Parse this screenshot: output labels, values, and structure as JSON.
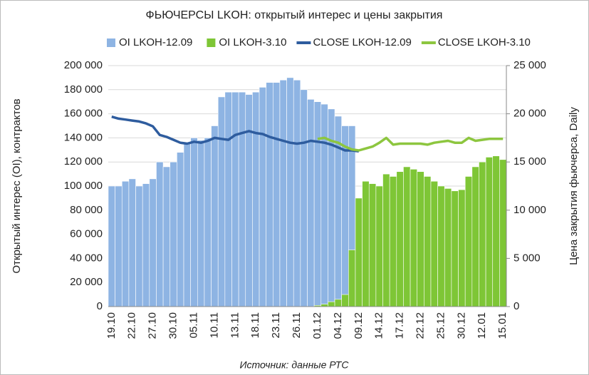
{
  "chart_data": {
    "type": "bar",
    "title": "ФЬЮЧЕРСЫ LKOH: открытый интерес и цены закрытия",
    "y_label": "Открытый интерес (OI), контрактов",
    "y2_label": "Цена закрытия фьючерса, Daily",
    "source": "Источник: данные РТС",
    "categories": [
      "19.10",
      null,
      null,
      "22.10",
      null,
      null,
      "27.10",
      null,
      null,
      "30.10",
      null,
      null,
      "05.11",
      null,
      null,
      "10.11",
      null,
      null,
      "13.11",
      null,
      null,
      "18.11",
      null,
      null,
      "23.11",
      null,
      null,
      "26.11",
      null,
      null,
      "01.12",
      null,
      null,
      "04.12",
      null,
      null,
      "09.12",
      null,
      null,
      "14.12",
      null,
      null,
      "17.12",
      null,
      null,
      "22.12",
      null,
      null,
      "25.12",
      null,
      null,
      "30.12",
      null,
      null,
      "12.01",
      null,
      null,
      "15.01"
    ],
    "series": [
      {
        "name": "OI LKOH-12.09",
        "type": "bar",
        "color": "#8eb4e3",
        "values": [
          100000,
          100000,
          104000,
          106000,
          100000,
          102000,
          106000,
          120000,
          116000,
          120000,
          128000,
          136000,
          140000,
          138000,
          140000,
          150000,
          174000,
          178000,
          178000,
          178000,
          176000,
          178000,
          182000,
          186000,
          186000,
          188000,
          190000,
          188000,
          180000,
          172000,
          170000,
          168000,
          164000,
          158000,
          150000,
          150000,
          76000,
          null,
          null,
          null,
          null,
          null,
          null,
          null,
          null,
          null,
          null,
          null,
          null,
          null,
          null,
          null,
          null,
          null,
          null,
          null,
          null,
          null
        ]
      },
      {
        "name": "OI LKOH-3.10",
        "type": "bar",
        "color": "#7ec636",
        "values": [
          null,
          null,
          null,
          null,
          null,
          null,
          null,
          null,
          null,
          null,
          null,
          null,
          null,
          null,
          null,
          null,
          null,
          null,
          null,
          null,
          null,
          null,
          null,
          null,
          null,
          null,
          null,
          null,
          null,
          null,
          1000,
          2000,
          4000,
          6000,
          10000,
          47000,
          90000,
          104000,
          102000,
          100000,
          110000,
          108000,
          112000,
          116000,
          114000,
          112000,
          108000,
          104000,
          100000,
          98000,
          96000,
          97000,
          108000,
          116000,
          120000,
          124000,
          125000,
          122000
        ]
      },
      {
        "name": "CLOSE LKOH-12.09",
        "type": "line",
        "axis": "y2",
        "color": "#2e5c9e",
        "values": [
          19700,
          19500,
          19400,
          19300,
          19200,
          19000,
          18700,
          17800,
          17600,
          17300,
          17000,
          16900,
          17100,
          17000,
          17200,
          17500,
          17400,
          17300,
          17800,
          18000,
          18200,
          18000,
          17900,
          17600,
          17400,
          17200,
          17000,
          16900,
          17000,
          17200,
          17100,
          17000,
          16800,
          16500,
          16200,
          16200,
          16100,
          null,
          null,
          null,
          null,
          null,
          null,
          null,
          null,
          null,
          null,
          null,
          null,
          null,
          null,
          null,
          null,
          null,
          null,
          null,
          null,
          null
        ]
      },
      {
        "name": "CLOSE LKOH-3.10",
        "type": "line",
        "axis": "y2",
        "color": "#8dc63f",
        "values": [
          null,
          null,
          null,
          null,
          null,
          null,
          null,
          null,
          null,
          null,
          null,
          null,
          null,
          null,
          null,
          null,
          null,
          null,
          null,
          null,
          null,
          null,
          null,
          null,
          null,
          null,
          null,
          null,
          null,
          null,
          17400,
          17500,
          17200,
          17000,
          16600,
          16300,
          16200,
          16400,
          16600,
          17000,
          17500,
          16800,
          16900,
          16900,
          16900,
          16900,
          16800,
          17000,
          17100,
          17200,
          17000,
          17000,
          17500,
          17200,
          17300,
          17400,
          17400,
          17400
        ]
      }
    ],
    "ylim": [
      0,
      200000
    ],
    "yticks": [
      0,
      {
        "value": 20000,
        "label": "20 000"
      },
      {
        "value": 40000,
        "label": "40 000"
      },
      {
        "value": 60000,
        "label": "60 000"
      },
      {
        "value": 80000,
        "label": "80 000"
      },
      {
        "value": 100000,
        "label": "100 000"
      },
      {
        "value": 120000,
        "label": "120 000"
      },
      {
        "value": 140000,
        "label": "140 000"
      },
      {
        "value": 160000,
        "label": "160 000"
      },
      {
        "value": 180000,
        "label": "180 000"
      },
      {
        "value": 200000,
        "label": "200 000"
      }
    ],
    "y2lim": [
      0,
      25000
    ],
    "y2ticks": [
      0,
      {
        "value": 5000,
        "label": "5 000"
      },
      {
        "value": 10000,
        "label": "10 000"
      },
      {
        "value": 15000,
        "label": "15 000"
      },
      {
        "value": 20000,
        "label": "20 000"
      },
      {
        "value": 25000,
        "label": "25 000"
      }
    ],
    "grid": true
  }
}
